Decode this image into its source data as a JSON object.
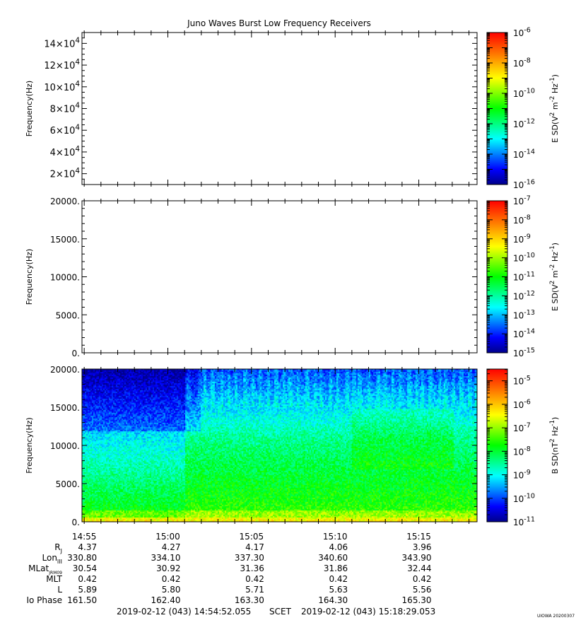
{
  "title": "Juno Waves Burst Low Frequency Receivers",
  "credit": "UIOWA 20200307",
  "chart_data": [
    {
      "type": "heatmap",
      "panel": 1,
      "title": "Juno Waves Burst Low Frequency Receivers",
      "ylabel": "Frequency (Hz)",
      "ylim": [
        10000,
        150000
      ],
      "y_ticks": [
        {
          "value": 20000,
          "mantissa": "2×10",
          "exp": "4"
        },
        {
          "value": 40000,
          "mantissa": "4×10",
          "exp": "4"
        },
        {
          "value": 60000,
          "mantissa": "6×10",
          "exp": "4"
        },
        {
          "value": 80000,
          "mantissa": "8×10",
          "exp": "4"
        },
        {
          "value": 100000,
          "mantissa": "10×10",
          "exp": "4"
        },
        {
          "value": 120000,
          "mantissa": "12×10",
          "exp": "4"
        },
        {
          "value": 140000,
          "mantissa": "14×10",
          "exp": "4"
        }
      ],
      "data_visible": false,
      "colorbar": {
        "label": "E SD (V² m⁻² Hz⁻¹)",
        "label_parts": [
          "E SD(V",
          "2",
          " m",
          "-2",
          " Hz",
          "-1",
          ")"
        ],
        "ticks": [
          {
            "base": "10",
            "exp": "-6"
          },
          {
            "base": "10",
            "exp": "-8"
          },
          {
            "base": "10",
            "exp": "-10"
          },
          {
            "base": "10",
            "exp": "-12"
          },
          {
            "base": "10",
            "exp": "-14"
          },
          {
            "base": "10",
            "exp": "-16"
          }
        ],
        "log_range": [
          -16,
          -6
        ]
      }
    },
    {
      "type": "heatmap",
      "panel": 2,
      "ylabel": "Frequency (Hz)",
      "ylim": [
        0,
        20000
      ],
      "y_ticks": [
        "0.",
        "5000.",
        "10000.",
        "15000.",
        "20000."
      ],
      "data_visible": false,
      "colorbar": {
        "label": "E SD (V² m⁻² Hz⁻¹)",
        "label_parts": [
          "E SD(V",
          "2",
          " m",
          "-2",
          " Hz",
          "-1",
          ")"
        ],
        "ticks": [
          {
            "base": "10",
            "exp": "-7"
          },
          {
            "base": "10",
            "exp": "-8"
          },
          {
            "base": "10",
            "exp": "-9"
          },
          {
            "base": "10",
            "exp": "-10"
          },
          {
            "base": "10",
            "exp": "-11"
          },
          {
            "base": "10",
            "exp": "-12"
          },
          {
            "base": "10",
            "exp": "-13"
          },
          {
            "base": "10",
            "exp": "-14"
          },
          {
            "base": "10",
            "exp": "-15"
          }
        ],
        "log_range": [
          -15,
          -7
        ]
      }
    },
    {
      "type": "heatmap",
      "panel": 3,
      "ylabel": "Frequency (Hz)",
      "ylim": [
        0,
        20000
      ],
      "y_ticks": [
        "0.",
        "5000.",
        "10000.",
        "15000.",
        "20000."
      ],
      "data_visible": true,
      "colorbar": {
        "label": "B SD (nT² Hz⁻¹)",
        "label_parts": [
          "B SD(nT",
          "2",
          " Hz",
          "-1",
          ")"
        ],
        "ticks": [
          {
            "base": "10",
            "exp": "-5"
          },
          {
            "base": "10",
            "exp": "-6"
          },
          {
            "base": "10",
            "exp": "-7"
          },
          {
            "base": "10",
            "exp": "-8"
          },
          {
            "base": "10",
            "exp": "-9"
          },
          {
            "base": "10",
            "exp": "-10"
          },
          {
            "base": "10",
            "exp": "-11"
          }
        ],
        "log_range": [
          -11,
          -4.5
        ]
      }
    }
  ],
  "time_axis": {
    "start_time": "14:54:52",
    "end_time": "15:18:29",
    "tick_labels": [
      "14:55",
      "15:00",
      "15:05",
      "15:10",
      "15:15"
    ]
  },
  "ephemeris": {
    "rows": [
      {
        "label": "R",
        "sub": "J",
        "values": [
          "4.37",
          "4.27",
          "4.17",
          "4.06",
          "3.96"
        ]
      },
      {
        "label": "Lon",
        "sub": "III",
        "values": [
          "330.80",
          "334.10",
          "337.30",
          "340.60",
          "343.90"
        ]
      },
      {
        "label": "MLat",
        "sub": "JRM09",
        "values": [
          "30.54",
          "30.92",
          "31.36",
          "31.86",
          "32.44"
        ]
      },
      {
        "label": "MLT",
        "sub": "",
        "values": [
          "0.42",
          "0.42",
          "0.42",
          "0.42",
          "0.42"
        ]
      },
      {
        "label": "L",
        "sub": "",
        "values": [
          "5.89",
          "5.80",
          "5.71",
          "5.63",
          "5.56"
        ]
      },
      {
        "label": "Io Phase",
        "sub": "",
        "values": [
          "161.50",
          "162.40",
          "163.30",
          "164.30",
          "165.30"
        ]
      }
    ]
  },
  "footer": {
    "start": "2019-02-12 (043) 14:54:52.055",
    "scet": "SCET",
    "end": "2019-02-12 (043) 15:18:29.053"
  },
  "colors": {
    "colormap": [
      "#00008a",
      "#0000ff",
      "#0080ff",
      "#00ffff",
      "#00ff80",
      "#00ff00",
      "#80ff00",
      "#ffff00",
      "#ffaa00",
      "#ff5500",
      "#ff0000"
    ]
  }
}
